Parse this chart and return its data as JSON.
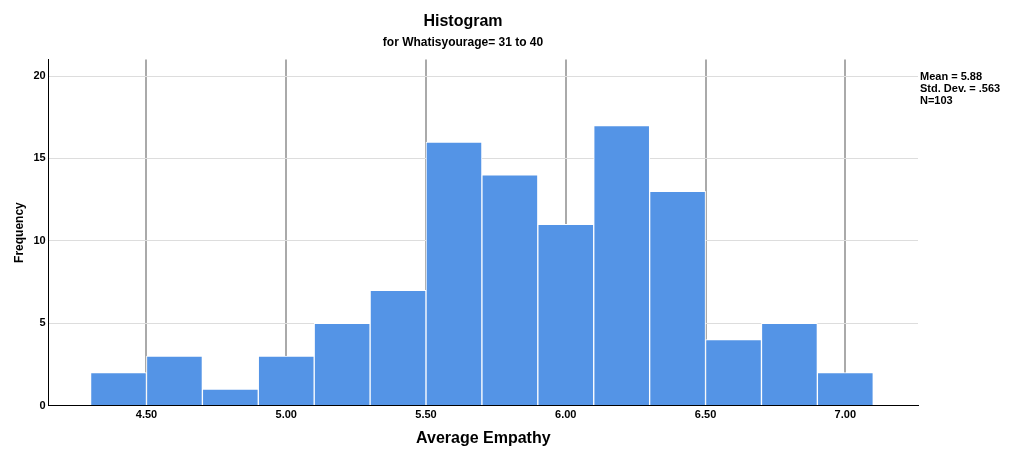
{
  "chart_data": {
    "type": "histogram",
    "title": "Histogram",
    "subtitle": "for Whatisyourage= 31 to 40",
    "xlabel": "Average Empathy",
    "ylabel": "Frequency",
    "bins": [
      4.3,
      4.5,
      4.7,
      4.9,
      5.1,
      5.3,
      5.5,
      5.7,
      5.9,
      6.1,
      6.3,
      6.5,
      6.7,
      6.9,
      7.1
    ],
    "values": [
      2,
      3,
      1,
      3,
      5,
      7,
      16,
      14,
      11,
      17,
      13,
      4,
      5,
      2
    ],
    "color": "#5494e6",
    "xlim": [
      4.15,
      7.26
    ],
    "xticks": [
      {
        "value": 4.5,
        "label": "4.50"
      },
      {
        "value": 5,
        "label": "5.00"
      },
      {
        "value": 5.5,
        "label": "5.50"
      },
      {
        "value": 6,
        "label": "6.00"
      },
      {
        "value": 6.5,
        "label": "6.50"
      },
      {
        "value": 7,
        "label": "7.00"
      }
    ],
    "ylim": [
      0,
      21
    ],
    "yticks": [
      0,
      5,
      10,
      15,
      20
    ],
    "grid": true,
    "legend": false,
    "annotations": [
      "Mean = 5.88",
      "Std. Dev. = .563",
      "N=103"
    ]
  }
}
